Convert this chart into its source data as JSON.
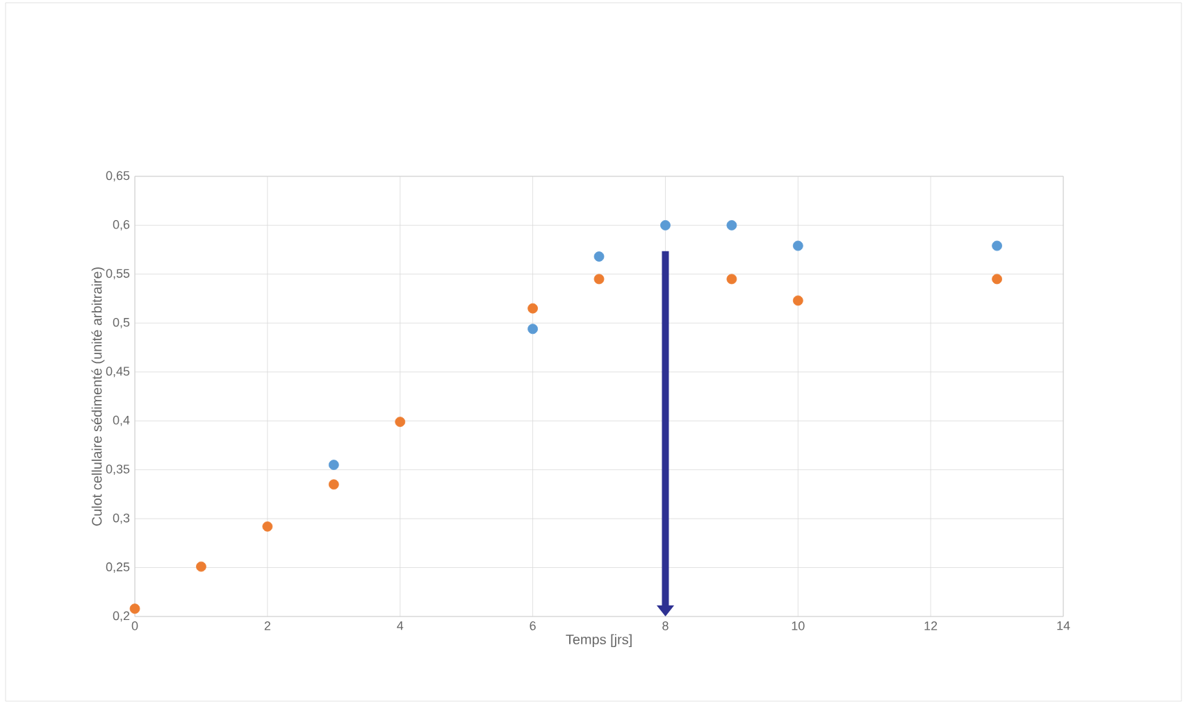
{
  "chart_data": {
    "type": "scatter",
    "xlabel": "Temps [jrs]",
    "ylabel": "Culot cellulaire sédimenté (unité arbitraire)",
    "series": [
      {
        "color": "#5b9bd5",
        "x": [
          3,
          6,
          7,
          8,
          9,
          10,
          13
        ],
        "values": [
          0.355,
          0.494,
          0.568,
          0.6,
          0.6,
          0.579,
          0.579
        ]
      },
      {
        "color": "#ed7d31",
        "x": [
          0,
          1,
          2,
          3,
          4,
          6,
          7,
          9,
          10,
          13
        ],
        "values": [
          0.208,
          0.251,
          0.292,
          0.335,
          0.399,
          0.515,
          0.545,
          0.545,
          0.523,
          0.545
        ]
      }
    ],
    "ref_lines": [
      {
        "axis": "x",
        "value": 8,
        "color": "#2e3192"
      }
    ],
    "xlim": [
      0,
      14
    ],
    "xticks": [
      0,
      2,
      4,
      6,
      8,
      10,
      12,
      14
    ],
    "ylim": [
      0.2,
      0.65
    ],
    "yticks": [
      {
        "value": 0.2,
        "label": "0,2"
      },
      {
        "value": 0.25,
        "label": "0,25"
      },
      {
        "value": 0.3,
        "label": "0,3"
      },
      {
        "value": 0.35,
        "label": "0,35"
      },
      {
        "value": 0.4,
        "label": "0,4"
      },
      {
        "value": 0.45,
        "label": "0,45"
      },
      {
        "value": 0.5,
        "label": "0,5"
      },
      {
        "value": 0.55,
        "label": "0,55"
      },
      {
        "value": 0.6,
        "label": "0,6"
      },
      {
        "value": 0.65,
        "label": "0,65"
      }
    ],
    "grid": true,
    "marker": "circle"
  }
}
